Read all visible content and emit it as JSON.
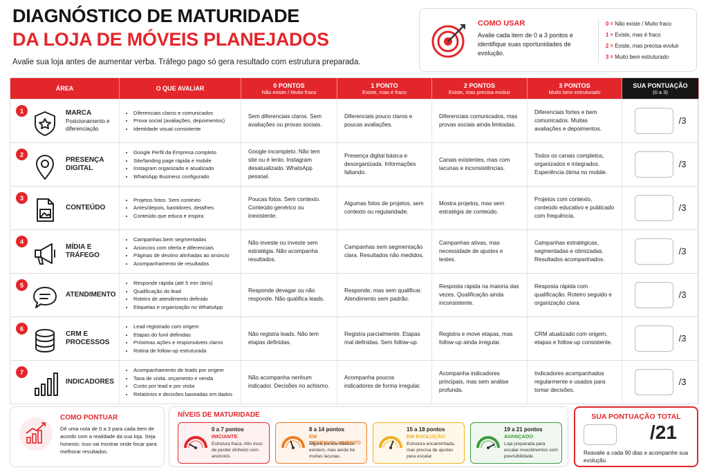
{
  "header": {
    "title_line1": "DIAGNÓSTICO DE MATURIDADE",
    "title_line2": "DA LOJA DE MÓVEIS PLANEJADOS",
    "subtitle": "Avalie sua loja antes de aumentar verba. Tráfego pago só gera resultado com estrutura preparada."
  },
  "how_to_use": {
    "title": "COMO USAR",
    "text": "Avalie cada item de 0 a 3 pontos e identifique suas oportunidades de evolução.",
    "scale": [
      {
        "score": "0 =",
        "label": "Não existe / Muito fraco"
      },
      {
        "score": "1 =",
        "label": "Existe, mas é fraco"
      },
      {
        "score": "2 =",
        "label": "Existe, mas precisa evoluir"
      },
      {
        "score": "3 =",
        "label": "Muito bem estruturado"
      }
    ]
  },
  "table": {
    "columns": [
      {
        "label": "ÁREA"
      },
      {
        "label": "O QUE AVALIAR"
      },
      {
        "label": "0 PONTOS",
        "sub": "Não existe / Muito fraco"
      },
      {
        "label": "1 PONTO",
        "sub": "Existe, mas é fraco"
      },
      {
        "label": "2 PONTOS",
        "sub": "Existe, mas precisa evoluir"
      },
      {
        "label": "3 PONTOS",
        "sub": "Muito bem estruturado"
      },
      {
        "label": "SUA PONTUAÇÃO",
        "sub": "(0 a 3)"
      }
    ],
    "score_suffix": "/3",
    "rows": [
      {
        "number": 1,
        "area": "MARCA",
        "area_sub": "Posicionamento e diferenciação",
        "items": [
          "Diferenciais claros e comunicados",
          "Prova social (avaliações, depoimentos)",
          "Identidade visual consistente"
        ],
        "levels": [
          "Sem diferenciais claros. Sem avaliações ou provas sociais.",
          "Diferenciais pouco claros e poucas avaliações.",
          "Diferenciais comunicados, mas provas sociais ainda limitadas.",
          "Diferenciais fortes e bem comunicados. Muitas avaliações e depoimentos."
        ]
      },
      {
        "number": 2,
        "area": "PRESENÇA DIGITAL",
        "items": [
          "Google Perfil da Empresa completo",
          "Site/landing page rápida e mobile",
          "Instagram organizado e atualizado",
          "WhatsApp Business configurado"
        ],
        "levels": [
          "Google incompleto. Não tem site ou é lento. Instagram desatualizado. WhatsApp pessoal.",
          "Presença digital básica e desorganizada. Informações faltando.",
          "Canais existentes, mas com lacunas e inconsistências.",
          "Todos os canais completos, organizados e integrados. Experiência ótima no mobile."
        ]
      },
      {
        "number": 3,
        "area": "CONTEÚDO",
        "items": [
          "Projetos fotos. Sem contexto",
          "Antes/depois, bastidores, detalhes",
          "Conteúdo que educa e inspira"
        ],
        "levels": [
          "Poucas fotos. Sem contexto. Conteúdo genérico ou inexistente.",
          "Algumas fotos de projetos, sem contexto ou regularidade.",
          "Mostra projetos, mas sem estratégia de conteúdo.",
          "Projetos com contexto, conteúdo educativo e publicado com frequência."
        ]
      },
      {
        "number": 4,
        "area": "MÍDIA E TRÁFEGO",
        "items": [
          "Campanhas bem segmentadas",
          "Anúncios com oferta e diferenciais",
          "Páginas de destino alinhadas ao anúncio",
          "Acompanhamento de resultados"
        ],
        "levels": [
          "Não investe ou investe sem estratégia. Não acompanha resultados.",
          "Campanhas sem segmentação clara. Resultados não medidos.",
          "Campanhas ativas, mas necessidade de ajustes e testes.",
          "Campanhas estratégicas, segmentadas e otimizadas. Resultados acompanhados."
        ]
      },
      {
        "number": 5,
        "area": "ATENDIMENTO",
        "items": [
          "Responde rápida (até 5 min úteis)",
          "Qualificação do lead",
          "Roteiro de atendimento definido",
          "Etiquetas e organização no WhatsApp"
        ],
        "levels": [
          "Responde devagar ou não responde. Não qualifica leads.",
          "Responde, mas sem qualificar. Atendimento sem padrão.",
          "Resposta rápida na maioria das vezes. Qualificação ainda inconsistente.",
          "Resposta rápida com qualificação. Roteiro seguido e organização clara."
        ]
      },
      {
        "number": 6,
        "area": "CRM E PROCESSOS",
        "items": [
          "Lead registrado com origem",
          "Etapas do funil definidas",
          "Próximas ações e responsáveis claros",
          "Rotina de follow-up estruturada"
        ],
        "levels": [
          "Não registra leads. Não tem etapas definidas.",
          "Registra parcialmente. Etapas mal definidas. Sem follow-up.",
          "Registra e move etapas, mas follow-up ainda irregular.",
          "CRM atualizado com origem, etapas e follow-up consistente."
        ]
      },
      {
        "number": 7,
        "area": "INDICADORES",
        "items": [
          "Acompanhamento de leads por origem",
          "Taxa de visita, orçamento e venda",
          "Custo por lead e por visita",
          "Relatórios e decisões baseadas em dados"
        ],
        "levels": [
          "Não acompanha nenhum indicador. Decisões no achismo.",
          "Acompanha poucos indicadores de forma irregular.",
          "Acompanha indicadores principais, mas sem análise profunda.",
          "Indicadores acompanhados regularmente e usados para tomar decisões."
        ]
      }
    ]
  },
  "scoring": {
    "title": "COMO PONTUAR",
    "text": "Dê uma nota de 0 a 3 para cada item de acordo com a realidade da sua loja. Seja honesto: isso vai mostrar onde focar para melhorar resultados."
  },
  "maturity": {
    "title": "NÍVEIS DE MATURIDADE",
    "levels": [
      {
        "range": "0 a 7 pontos",
        "name": "INICIANTE",
        "text": "Estrutura fraca. Alto risco de perder dinheiro com anúncios.",
        "color": "#e3262b",
        "background": "#fdf1f1"
      },
      {
        "range": "8 a 14 pontos",
        "name": "EM DESENVOLVIMENTO",
        "text": "Alguns pontos básicos existem, mas ainda há muitas lacunas.",
        "color": "#f07d1f",
        "background": "#fef4ec"
      },
      {
        "range": "15 a 18 pontos",
        "name": "EM EVOLUÇÃO",
        "text": "Estrutura encaminhada, mas precisa de ajustes para escalar.",
        "color": "#f2b01e",
        "background": "#fef8ea"
      },
      {
        "range": "19 a 21 pontos",
        "name": "AVANÇADO",
        "text": "Loja preparada para escalar investimentos com previsibilidade.",
        "color": "#3f9a3d",
        "background": "#eff7ee"
      }
    ]
  },
  "total": {
    "title": "SUA PONTUAÇÃO TOTAL",
    "max": "/21",
    "text": "Reavalie a cada 90 dias e acompanhe sua evolução."
  }
}
